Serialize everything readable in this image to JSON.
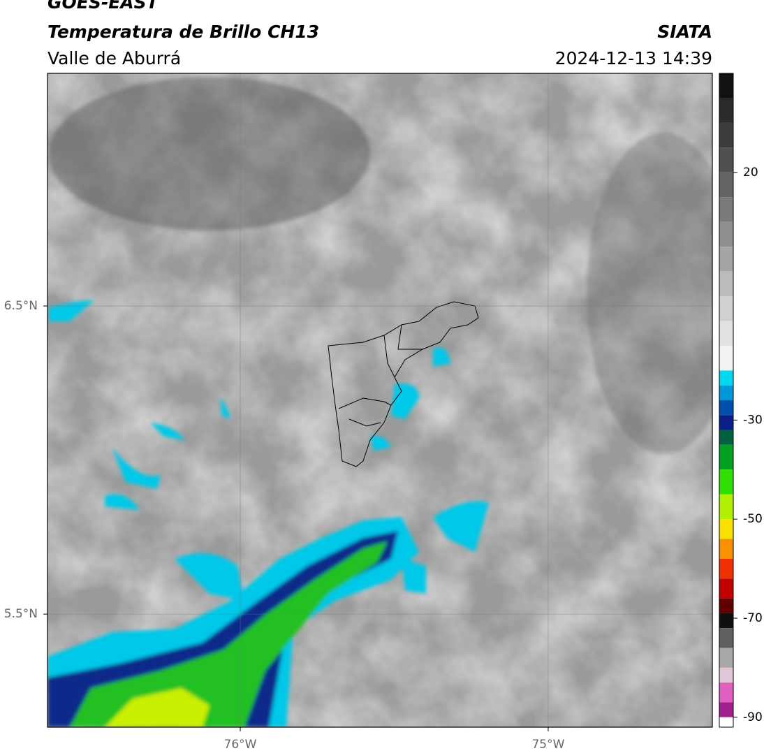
{
  "header": {
    "title": "GOES-EAST",
    "subtitle": "Temperatura de Brillo CH13",
    "region": "Valle de Aburrá",
    "source": "SIATA",
    "timestamp": "2024-12-13 14:39"
  },
  "chart_data": {
    "type": "map",
    "xlim": [
      -76.626,
      -74.467
    ],
    "ylim": [
      5.133,
      7.255
    ],
    "xticks": [
      {
        "value": -76,
        "label": "76°W"
      },
      {
        "value": -75,
        "label": "75°W"
      }
    ],
    "yticks": [
      {
        "value": 6.5,
        "label": "6.5°N"
      },
      {
        "value": 5.5,
        "label": "5.5°N"
      }
    ],
    "grid": true,
    "colorbar": {
      "clim": [
        -92,
        40
      ],
      "ticks": [
        20,
        -30,
        -50,
        -70,
        -90
      ],
      "colors": [
        {
          "value": 40,
          "color": "#111111"
        },
        {
          "value": 35,
          "color": "#2a2a2a"
        },
        {
          "value": 30,
          "color": "#3c3c3c"
        },
        {
          "value": 25,
          "color": "#505050"
        },
        {
          "value": 20,
          "color": "#656565"
        },
        {
          "value": 15,
          "color": "#7a7a7a"
        },
        {
          "value": 10,
          "color": "#8f8f8f"
        },
        {
          "value": 5,
          "color": "#a5a5a5"
        },
        {
          "value": 0,
          "color": "#bbbbbb"
        },
        {
          "value": -5,
          "color": "#d0d0d0"
        },
        {
          "value": -10,
          "color": "#e2e2e2"
        },
        {
          "value": -15,
          "color": "#f2f2f2"
        },
        {
          "value": -20,
          "color": "#00d8f0"
        },
        {
          "value": -23,
          "color": "#0098d8"
        },
        {
          "value": -26,
          "color": "#0050b0"
        },
        {
          "value": -29,
          "color": "#0a1e8a"
        },
        {
          "value": -32,
          "color": "#006040"
        },
        {
          "value": -35,
          "color": "#00a020"
        },
        {
          "value": -40,
          "color": "#30e000"
        },
        {
          "value": -45,
          "color": "#b0f000"
        },
        {
          "value": -50,
          "color": "#f8e000"
        },
        {
          "value": -54,
          "color": "#f89000"
        },
        {
          "value": -58,
          "color": "#f03000"
        },
        {
          "value": -62,
          "color": "#c00000"
        },
        {
          "value": -66,
          "color": "#600000"
        },
        {
          "value": -69,
          "color": "#101010"
        },
        {
          "value": -72,
          "color": "#606060"
        },
        {
          "value": -76,
          "color": "#a8a8a8"
        },
        {
          "value": -80,
          "color": "#e0c8d8"
        },
        {
          "value": -83,
          "color": "#e060c0"
        },
        {
          "value": -87,
          "color": "#a02090"
        },
        {
          "value": -90,
          "color": "#ffffff"
        }
      ]
    }
  }
}
